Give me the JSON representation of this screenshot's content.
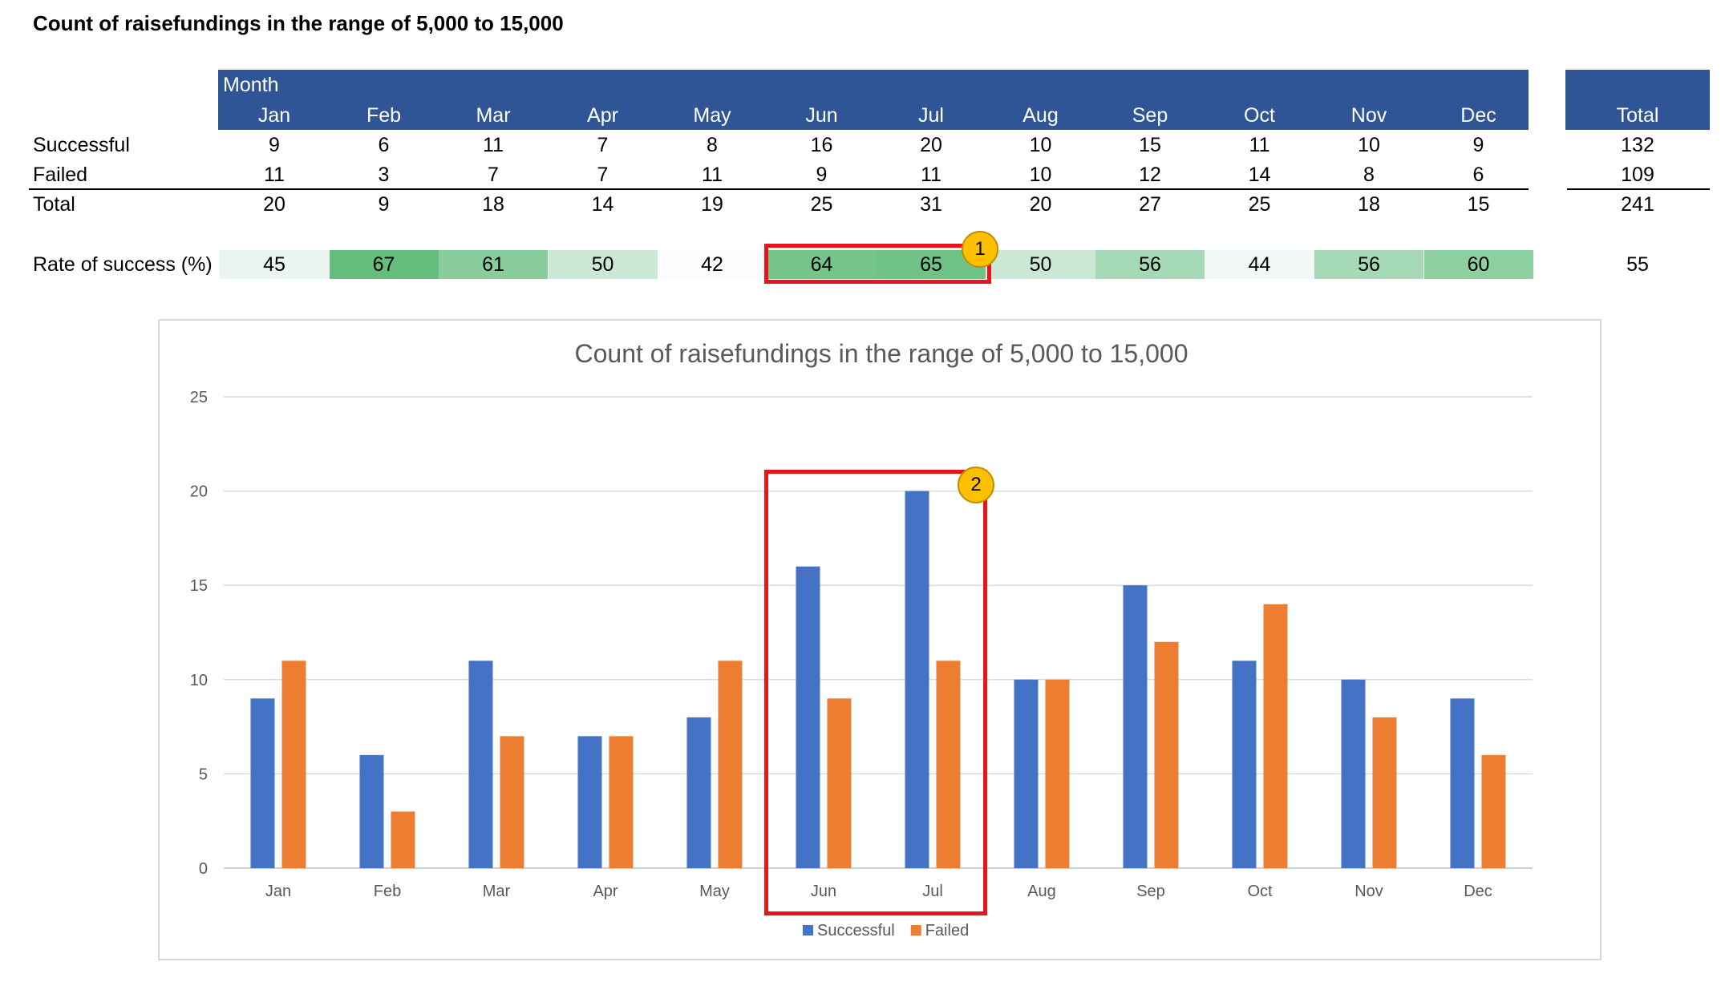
{
  "page_title": "Count of raisefundings in the range of 5,000 to 15,000",
  "table": {
    "header_group": "Month",
    "months": [
      "Jan",
      "Feb",
      "Mar",
      "Apr",
      "May",
      "Jun",
      "Jul",
      "Aug",
      "Sep",
      "Oct",
      "Nov",
      "Dec"
    ],
    "total_header": "Total",
    "rows": [
      {
        "label": "Successful",
        "values": [
          "9",
          "6",
          "11",
          "7",
          "8",
          "16",
          "20",
          "10",
          "15",
          "11",
          "10",
          "9"
        ],
        "total": "132"
      },
      {
        "label": "Failed",
        "values": [
          "11",
          "3",
          "7",
          "7",
          "11",
          "9",
          "11",
          "10",
          "12",
          "14",
          "8",
          "6"
        ],
        "total": "109"
      },
      {
        "label": "Total",
        "values": [
          "20",
          "9",
          "18",
          "14",
          "19",
          "25",
          "31",
          "20",
          "27",
          "25",
          "18",
          "15"
        ],
        "total": "241"
      }
    ],
    "rate": {
      "label": "Rate of success (%)",
      "values": [
        "45",
        "67",
        "61",
        "50",
        "42",
        "64",
        "65",
        "50",
        "56",
        "44",
        "56",
        "60"
      ],
      "total": "55"
    }
  },
  "annotations": {
    "badge1": "1",
    "badge2": "2"
  },
  "colors": {
    "header_bg": "#2F5597",
    "successful": "#4472C4",
    "failed": "#ED7D31",
    "highlight": "#E8151A",
    "badge": "#FFC000",
    "heat_low": "#FCFCFF",
    "heat_high": "#63BE7B"
  },
  "chart_data": {
    "type": "bar",
    "title": "Count of raisefundings in the range of 5,000 to 15,000",
    "categories": [
      "Jan",
      "Feb",
      "Mar",
      "Apr",
      "May",
      "Jun",
      "Jul",
      "Aug",
      "Sep",
      "Oct",
      "Nov",
      "Dec"
    ],
    "series": [
      {
        "name": "Successful",
        "values": [
          9,
          6,
          11,
          7,
          8,
          16,
          20,
          10,
          15,
          11,
          10,
          9
        ],
        "color": "#4472C4"
      },
      {
        "name": "Failed",
        "values": [
          11,
          3,
          7,
          7,
          11,
          9,
          11,
          10,
          12,
          14,
          8,
          6
        ],
        "color": "#ED7D31"
      }
    ],
    "ylim": [
      0,
      25
    ],
    "yticks": [
      0,
      5,
      10,
      15,
      20,
      25
    ],
    "grid": true,
    "legend": "bottom",
    "xlabel": "",
    "ylabel": ""
  }
}
